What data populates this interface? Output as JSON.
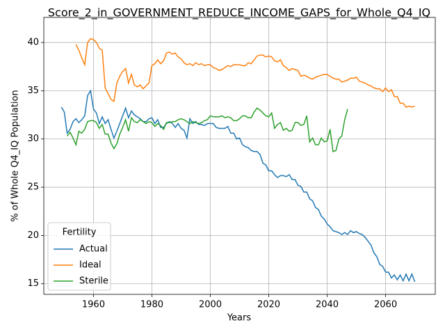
{
  "chart_data": {
    "type": "line",
    "title": "Score_2_in_GOVERNMENT_REDUCE_INCOME_GAPS_for_Whole_Q4_IQ",
    "xlabel": "Years",
    "ylabel": "% of Whole Q4_IQ Population",
    "xlim": [
      1943,
      2077
    ],
    "ylim": [
      13.9,
      42.6
    ],
    "xticks": [
      1960,
      1980,
      2000,
      2020,
      2040,
      2060
    ],
    "yticks": [
      15,
      20,
      25,
      30,
      35,
      40
    ],
    "grid": true,
    "legend_loc": "lower left",
    "legend_title": "Fertility",
    "series": [
      {
        "name": "Actual",
        "color": "#1f77b4",
        "x": [
          1949,
          1950,
          1951,
          1952,
          1953,
          1954,
          1955,
          1956,
          1957,
          1958,
          1959,
          1960,
          1961,
          1962,
          1963,
          1964,
          1965,
          1966,
          1967,
          1968,
          1969,
          1970,
          1971,
          1972,
          1973,
          1974,
          1975,
          1976,
          1977,
          1978,
          1979,
          1980,
          1981,
          1982,
          1983,
          1984,
          1985,
          1986,
          1987,
          1988,
          1989,
          1990,
          1991,
          1992,
          1993,
          1994,
          1995,
          1996,
          1997,
          1998,
          1999,
          2000,
          2001,
          2002,
          2003,
          2004,
          2005,
          2006,
          2007,
          2008,
          2009,
          2010,
          2011,
          2012,
          2013,
          2014,
          2015,
          2016,
          2017,
          2018,
          2019,
          2020,
          2021,
          2022,
          2023,
          2024,
          2025,
          2026,
          2027,
          2028,
          2029,
          2030,
          2031,
          2032,
          2033,
          2034,
          2035,
          2036,
          2037,
          2038,
          2039,
          2040,
          2041,
          2042,
          2043,
          2044,
          2045,
          2046,
          2047,
          2048,
          2049,
          2050,
          2051,
          2052,
          2053,
          2054,
          2055,
          2056,
          2057,
          2058,
          2059,
          2060,
          2061,
          2062,
          2063,
          2064,
          2065,
          2066,
          2067,
          2068,
          2069,
          2070
        ],
        "values": [
          33.3,
          32.8,
          30.6,
          31.0,
          31.8,
          32.1,
          31.7,
          32.0,
          32.4,
          34.5,
          35.0,
          33.1,
          32.7,
          31.6,
          32.3,
          31.6,
          32.0,
          31.0,
          30.1,
          30.8,
          31.6,
          32.4,
          33.2,
          32.2,
          32.9,
          32.5,
          32.3,
          32.1,
          31.8,
          31.8,
          32.1,
          32.2,
          31.6,
          32.0,
          31.2,
          31.2,
          31.6,
          31.8,
          31.6,
          31.2,
          31.6,
          31.1,
          30.9,
          30.1,
          32.1,
          31.6,
          31.8,
          31.5,
          31.5,
          31.4,
          31.6,
          31.6,
          31.6,
          31.2,
          31.1,
          31.1,
          31.1,
          31.3,
          30.6,
          30.6,
          30.0,
          30.1,
          29.4,
          29.2,
          29.1,
          28.8,
          28.7,
          28.7,
          28.4,
          27.5,
          27.3,
          26.7,
          26.7,
          26.3,
          26.0,
          26.2,
          26.2,
          26.1,
          26.3,
          25.8,
          25.8,
          25.2,
          25.1,
          24.5,
          24.5,
          23.8,
          23.6,
          22.9,
          22.7,
          22.0,
          21.7,
          21.2,
          20.9,
          20.5,
          20.4,
          20.3,
          20.1,
          20.3,
          20.1,
          20.5,
          20.3,
          20.4,
          20.2,
          20.1,
          19.8,
          19.4,
          19.0,
          18.2,
          17.8,
          17.0,
          16.8,
          16.2,
          16.2,
          15.6,
          15.9,
          15.4,
          15.9,
          15.3,
          16.0,
          15.3,
          16.0,
          15.2
        ]
      },
      {
        "name": "Ideal",
        "color": "#ff7f0e",
        "x": [
          1954,
          1955,
          1956,
          1957,
          1958,
          1959,
          1960,
          1961,
          1962,
          1963,
          1964,
          1965,
          1966,
          1967,
          1968,
          1969,
          1970,
          1971,
          1972,
          1973,
          1974,
          1975,
          1976,
          1977,
          1978,
          1979,
          1980,
          1981,
          1982,
          1983,
          1984,
          1985,
          1986,
          1987,
          1988,
          1989,
          1990,
          1991,
          1992,
          1993,
          1994,
          1995,
          1996,
          1997,
          1998,
          1999,
          2000,
          2001,
          2002,
          2003,
          2004,
          2005,
          2006,
          2007,
          2008,
          2009,
          2010,
          2011,
          2012,
          2013,
          2014,
          2015,
          2016,
          2017,
          2018,
          2019,
          2020,
          2021,
          2022,
          2023,
          2024,
          2025,
          2026,
          2027,
          2028,
          2029,
          2030,
          2031,
          2032,
          2033,
          2034,
          2035,
          2036,
          2037,
          2038,
          2039,
          2040,
          2041,
          2042,
          2043,
          2044,
          2045,
          2046,
          2047,
          2048,
          2049,
          2050,
          2051,
          2052,
          2053,
          2054,
          2055,
          2056,
          2057,
          2058,
          2059,
          2060,
          2061,
          2062,
          2063,
          2064,
          2065,
          2066,
          2067,
          2068,
          2069,
          2070
        ],
        "values": [
          39.8,
          39.2,
          38.4,
          37.7,
          40.0,
          40.4,
          40.3,
          40.0,
          39.4,
          39.2,
          35.3,
          34.7,
          34.1,
          33.9,
          35.8,
          36.5,
          37.0,
          37.3,
          35.8,
          36.7,
          35.6,
          35.4,
          35.6,
          35.2,
          35.5,
          35.8,
          37.6,
          37.8,
          38.2,
          37.8,
          38.1,
          38.9,
          39.0,
          38.8,
          38.9,
          38.5,
          38.3,
          37.9,
          37.7,
          37.8,
          37.6,
          37.9,
          37.7,
          37.8,
          37.6,
          37.7,
          37.7,
          37.4,
          37.3,
          37.1,
          37.2,
          37.4,
          37.6,
          37.5,
          37.7,
          37.7,
          37.7,
          37.6,
          37.6,
          37.9,
          37.8,
          38.2,
          38.6,
          38.7,
          38.7,
          38.5,
          38.6,
          38.5,
          38.1,
          38.0,
          38.2,
          37.6,
          37.4,
          37.1,
          37.3,
          37.2,
          37.1,
          36.5,
          36.6,
          36.5,
          36.3,
          36.2,
          36.4,
          36.5,
          36.6,
          36.7,
          36.7,
          36.5,
          36.3,
          36.2,
          36.2,
          35.9,
          36.0,
          36.1,
          36.3,
          36.3,
          36.4,
          36.0,
          35.9,
          35.8,
          35.6,
          35.5,
          35.3,
          35.2,
          35.2,
          34.9,
          35.3,
          34.9,
          35.1,
          34.4,
          34.4,
          33.7,
          33.7,
          33.3,
          33.4,
          33.3,
          33.4
        ]
      },
      {
        "name": "Sterile",
        "color": "#2ca02c",
        "x": [
          1951,
          1952,
          1953,
          1954,
          1955,
          1956,
          1957,
          1958,
          1959,
          1960,
          1961,
          1962,
          1963,
          1964,
          1965,
          1966,
          1967,
          1968,
          1969,
          1970,
          1971,
          1972,
          1973,
          1974,
          1975,
          1976,
          1977,
          1978,
          1979,
          1980,
          1981,
          1982,
          1983,
          1984,
          1985,
          1986,
          1987,
          1988,
          1989,
          1990,
          1991,
          1992,
          1993,
          1994,
          1995,
          1996,
          1997,
          1998,
          1999,
          2000,
          2001,
          2002,
          2003,
          2004,
          2005,
          2006,
          2007,
          2008,
          2009,
          2010,
          2011,
          2012,
          2013,
          2014,
          2015,
          2016,
          2017,
          2018,
          2019,
          2020,
          2021,
          2022,
          2023,
          2024,
          2025,
          2026,
          2027,
          2028,
          2029,
          2030,
          2031,
          2032,
          2033,
          2034,
          2035,
          2036,
          2037,
          2038,
          2039,
          2040,
          2041,
          2042,
          2043,
          2044,
          2045,
          2046,
          2047
        ],
        "values": [
          30.3,
          30.7,
          30.1,
          29.4,
          30.8,
          30.6,
          31.0,
          31.8,
          31.9,
          31.9,
          31.7,
          31.1,
          31.5,
          30.5,
          30.5,
          29.6,
          29.0,
          29.5,
          30.5,
          31.2,
          32.0,
          30.8,
          32.2,
          31.8,
          31.7,
          32.0,
          31.8,
          31.6,
          31.8,
          31.7,
          31.3,
          31.6,
          31.4,
          31.0,
          31.7,
          31.7,
          31.8,
          31.8,
          32.0,
          32.1,
          32.0,
          31.8,
          31.6,
          31.8,
          31.7,
          31.6,
          31.7,
          31.9,
          32.0,
          32.4,
          32.3,
          32.3,
          32.3,
          32.4,
          32.2,
          32.3,
          32.2,
          31.9,
          31.9,
          32.1,
          32.4,
          32.4,
          32.2,
          32.2,
          32.8,
          33.2,
          33.0,
          32.7,
          32.4,
          32.3,
          32.7,
          31.1,
          31.5,
          31.7,
          30.9,
          31.1,
          30.8,
          30.9,
          31.7,
          31.7,
          31.4,
          31.5,
          32.4,
          29.7,
          30.1,
          29.4,
          29.4,
          30.1,
          29.7,
          29.8,
          31.0,
          28.7,
          28.8,
          30.0,
          30.3,
          32.0,
          33.1
        ]
      }
    ]
  }
}
